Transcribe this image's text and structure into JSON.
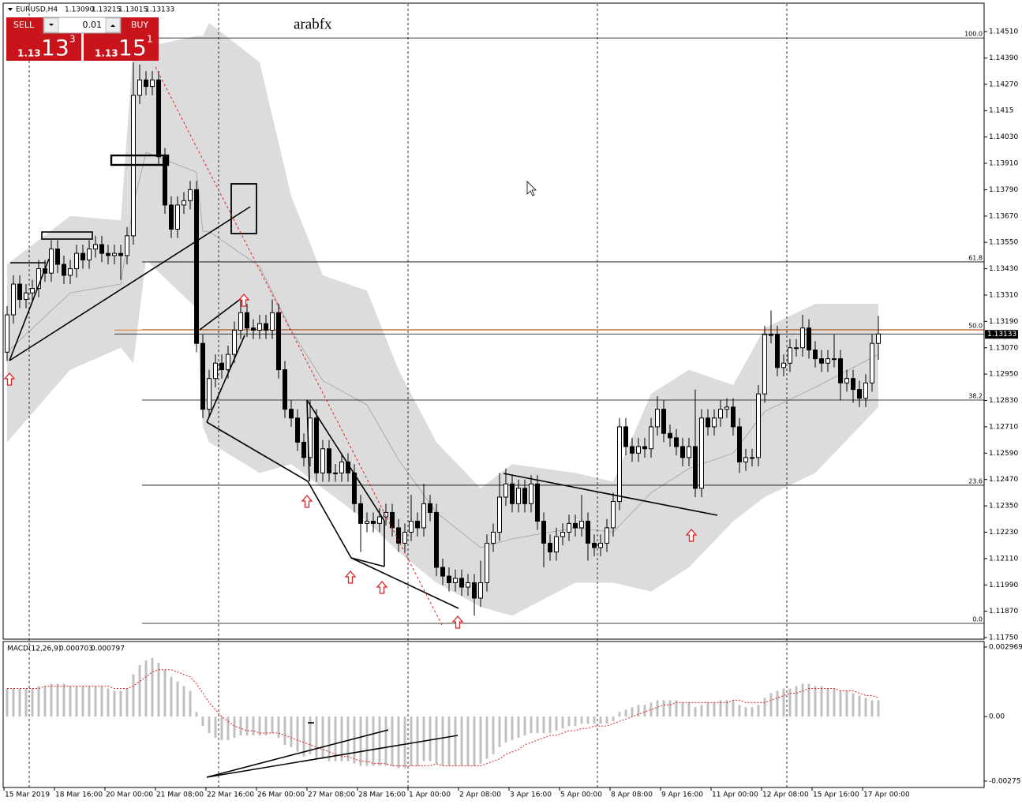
{
  "watermark": "arabfx",
  "trade_panel": {
    "sell": "SELL",
    "buy": "BUY",
    "lot": "0.01",
    "sell_price": [
      "1.13",
      "13",
      "3"
    ],
    "buy_price": [
      "1.13",
      "15",
      "1"
    ]
  },
  "chart_data": [
    {
      "type": "candlestick",
      "title": "EURUSD,H4",
      "ohlc": [
        {
          "value": 1.1309,
          "label": "1.13090"
        },
        {
          "value": 1.13215,
          "label": "1.13215"
        },
        {
          "value": 1.13015,
          "label": "1.13015"
        },
        1.13133
      ],
      "categories": [
        "15 Mar 2019",
        "18 Mar 16:00",
        "20 Mar 00:00",
        "21 Mar 08:00",
        "22 Mar 16:00",
        "26 Mar 00:00",
        "27 Mar 08:00",
        "28 Mar 16:00",
        "1 Apr 00:00",
        "2 Apr 08:00",
        "3 Apr 16:00",
        "5 Apr 00:00",
        "8 Apr 08:00",
        "9 Apr 16:00",
        "11 Apr 00:00",
        "12 Apr 08:00",
        "15 Apr 16:00",
        "17 Apr 00:00"
      ],
      "open": [
        1.1305,
        1.1322,
        1.1336,
        1.1329,
        1.1332,
        1.1334,
        1.1343,
        1.1341,
        1.1352,
        1.1345,
        1.134,
        1.1343,
        1.135,
        1.1347,
        1.1352,
        1.1354,
        1.135,
        1.1349,
        1.135,
        1.1349,
        1.1358,
        1.1422,
        1.1429,
        1.1426,
        1.1429,
        1.1394,
        1.1372,
        1.1361,
        1.1372,
        1.1374,
        1.1379,
        1.1309,
        1.1279,
        1.1293,
        1.13,
        1.1297,
        1.1304,
        1.1315,
        1.1323,
        1.1316,
        1.1315,
        1.1318,
        1.1315,
        1.1323,
        1.1297,
        1.1279,
        1.1275,
        1.1264,
        1.1257,
        1.1275,
        1.125,
        1.1261,
        1.125,
        1.125,
        1.1255,
        1.125,
        1.1236,
        1.1227,
        1.1228,
        1.1227,
        1.123,
        1.1232,
        1.1225,
        1.1218,
        1.1223,
        1.1228,
        1.1225,
        1.1236,
        1.1232,
        1.1207,
        1.1203,
        1.12,
        1.1202,
        1.1198,
        1.12,
        1.1193,
        1.12,
        1.1218,
        1.1223,
        1.1239,
        1.1245,
        1.1236,
        1.1243,
        1.1236,
        1.1245,
        1.1228,
        1.1218,
        1.1214,
        1.1221,
        1.1223,
        1.1227,
        1.1225,
        1.1228,
        1.1218,
        1.1216,
        1.1218,
        1.1225,
        1.1237,
        1.1271,
        1.1262,
        1.1259,
        1.1262,
        1.1261,
        1.1271,
        1.1279,
        1.1268,
        1.1266,
        1.1262,
        1.1257,
        1.1262,
        1.1243,
        1.1275,
        1.1271,
        1.1275,
        1.1279,
        1.128,
        1.1271,
        1.1255,
        1.1257,
        1.1257,
        1.1286,
        1.1313,
        1.1313,
        1.1298,
        1.13,
        1.1307,
        1.1307,
        1.1316,
        1.1306,
        1.1302,
        1.13,
        1.1302,
        1.1302,
        1.1291,
        1.1293,
        1.1288,
        1.1284,
        1.1291,
        1.1309
      ],
      "high": [
        1.1326,
        1.134,
        1.134,
        1.1336,
        1.1338,
        1.1347,
        1.1347,
        1.1356,
        1.1356,
        1.1349,
        1.1347,
        1.1354,
        1.1354,
        1.1356,
        1.1358,
        1.1358,
        1.1354,
        1.1354,
        1.1354,
        1.1362,
        1.1437,
        1.1436,
        1.1433,
        1.1433,
        1.1433,
        1.1398,
        1.1376,
        1.1376,
        1.1378,
        1.1383,
        1.1383,
        1.1313,
        1.1297,
        1.1304,
        1.1304,
        1.1308,
        1.1319,
        1.1329,
        1.1327,
        1.132,
        1.1322,
        1.1322,
        1.1329,
        1.1327,
        1.1301,
        1.1283,
        1.1279,
        1.1268,
        1.1283,
        1.1279,
        1.1265,
        1.1265,
        1.1254,
        1.1259,
        1.1259,
        1.1254,
        1.124,
        1.1232,
        1.1232,
        1.1234,
        1.1236,
        1.1236,
        1.1229,
        1.1227,
        1.124,
        1.1232,
        1.1245,
        1.124,
        1.1236,
        1.1211,
        1.1207,
        1.1206,
        1.1206,
        1.1204,
        1.1204,
        1.121,
        1.1222,
        1.1227,
        1.125,
        1.1252,
        1.1249,
        1.1247,
        1.1247,
        1.1249,
        1.1249,
        1.1232,
        1.1222,
        1.1225,
        1.1227,
        1.1231,
        1.1231,
        1.124,
        1.1232,
        1.1222,
        1.1222,
        1.1229,
        1.1241,
        1.1275,
        1.1275,
        1.1266,
        1.1266,
        1.1266,
        1.1275,
        1.1285,
        1.1283,
        1.1272,
        1.127,
        1.1266,
        1.1266,
        1.1288,
        1.1279,
        1.1279,
        1.1279,
        1.1283,
        1.1284,
        1.1284,
        1.1275,
        1.1261,
        1.1261,
        1.129,
        1.1317,
        1.1324,
        1.1317,
        1.1304,
        1.1311,
        1.1311,
        1.1322,
        1.132,
        1.131,
        1.1306,
        1.1306,
        1.1313,
        1.1306,
        1.1297,
        1.1297,
        1.1292,
        1.1295,
        1.1313,
        1.13215
      ],
      "low": [
        1.1301,
        1.1318,
        1.1325,
        1.1325,
        1.1328,
        1.133,
        1.1337,
        1.1337,
        1.1341,
        1.1336,
        1.1336,
        1.1339,
        1.1343,
        1.1343,
        1.1348,
        1.1346,
        1.1345,
        1.1345,
        1.1338,
        1.1345,
        1.1354,
        1.1418,
        1.1422,
        1.1422,
        1.139,
        1.1368,
        1.1357,
        1.1357,
        1.1368,
        1.137,
        1.1305,
        1.1275,
        1.1275,
        1.1289,
        1.1293,
        1.1293,
        1.13,
        1.1311,
        1.1312,
        1.1311,
        1.1311,
        1.1311,
        1.1311,
        1.1293,
        1.1275,
        1.1271,
        1.126,
        1.1253,
        1.1253,
        1.1246,
        1.1246,
        1.1246,
        1.1246,
        1.1246,
        1.1246,
        1.1232,
        1.1214,
        1.1223,
        1.1223,
        1.1223,
        1.1226,
        1.1221,
        1.1214,
        1.1214,
        1.1219,
        1.1221,
        1.1221,
        1.1228,
        1.1203,
        1.1199,
        1.1196,
        1.1196,
        1.1194,
        1.1194,
        1.1185,
        1.1189,
        1.1196,
        1.1214,
        1.1219,
        1.1235,
        1.1232,
        1.1232,
        1.1232,
        1.1232,
        1.1224,
        1.1207,
        1.121,
        1.121,
        1.1217,
        1.1219,
        1.1221,
        1.1221,
        1.121,
        1.1212,
        1.1212,
        1.1214,
        1.1221,
        1.1233,
        1.1258,
        1.1255,
        1.1255,
        1.1257,
        1.1257,
        1.1267,
        1.1264,
        1.1262,
        1.1258,
        1.1253,
        1.1253,
        1.1239,
        1.1239,
        1.1267,
        1.1267,
        1.1271,
        1.1275,
        1.1267,
        1.125,
        1.1251,
        1.1253,
        1.1253,
        1.1282,
        1.1309,
        1.1294,
        1.1294,
        1.1296,
        1.1303,
        1.1303,
        1.1302,
        1.1298,
        1.1296,
        1.1296,
        1.1298,
        1.1283,
        1.1287,
        1.1282,
        1.128,
        1.128,
        1.1287,
        1.13015
      ],
      "close": [
        1.1322,
        1.1336,
        1.1329,
        1.1332,
        1.1334,
        1.1343,
        1.1341,
        1.1352,
        1.1345,
        1.134,
        1.1343,
        1.135,
        1.1347,
        1.1352,
        1.1354,
        1.135,
        1.1349,
        1.135,
        1.1349,
        1.1358,
        1.1422,
        1.1429,
        1.1426,
        1.1429,
        1.1394,
        1.1372,
        1.1361,
        1.1372,
        1.1374,
        1.1379,
        1.1309,
        1.1279,
        1.1293,
        1.13,
        1.1297,
        1.1304,
        1.1315,
        1.1323,
        1.1316,
        1.1315,
        1.1318,
        1.1315,
        1.1323,
        1.1297,
        1.1279,
        1.1275,
        1.1264,
        1.1257,
        1.1275,
        1.125,
        1.1261,
        1.125,
        1.125,
        1.1255,
        1.125,
        1.1236,
        1.1227,
        1.1228,
        1.1227,
        1.123,
        1.1232,
        1.1225,
        1.1218,
        1.1223,
        1.1228,
        1.1225,
        1.1236,
        1.1232,
        1.1207,
        1.1203,
        1.12,
        1.1202,
        1.1198,
        1.12,
        1.1193,
        1.12,
        1.1218,
        1.1223,
        1.1239,
        1.1245,
        1.1236,
        1.1243,
        1.1236,
        1.1245,
        1.1228,
        1.1218,
        1.1214,
        1.1221,
        1.1223,
        1.1227,
        1.1225,
        1.1228,
        1.1218,
        1.1216,
        1.1218,
        1.1225,
        1.1237,
        1.1271,
        1.1262,
        1.1259,
        1.1262,
        1.1261,
        1.1271,
        1.1279,
        1.1268,
        1.1266,
        1.1262,
        1.1257,
        1.1262,
        1.1243,
        1.1275,
        1.1271,
        1.1275,
        1.1279,
        1.128,
        1.1271,
        1.1255,
        1.1257,
        1.1257,
        1.1286,
        1.1313,
        1.1313,
        1.1298,
        1.13,
        1.1307,
        1.1307,
        1.1316,
        1.1306,
        1.1302,
        1.13,
        1.1302,
        1.1302,
        1.1291,
        1.1293,
        1.1288,
        1.1284,
        1.1291,
        1.1309,
        1.13133
      ],
      "band": {
        "x": [
          0,
          10,
          18,
          20,
          22,
          30,
          31,
          32,
          40,
          45,
          50,
          57,
          62,
          68,
          75,
          80,
          90,
          96,
          102,
          108,
          115,
          120,
          128,
          138
        ],
        "upper": [
          1.1345,
          1.1367,
          1.1365,
          1.1444,
          1.1444,
          1.1449,
          1.1449,
          1.1455,
          1.1437,
          1.1376,
          1.134,
          1.1333,
          1.1297,
          1.1264,
          1.1243,
          1.1254,
          1.125,
          1.1246,
          1.1286,
          1.1297,
          1.129,
          1.1316,
          1.1327,
          1.1327
        ],
        "lower": [
          1.1264,
          1.1297,
          1.1307,
          1.13,
          1.1347,
          1.1325,
          1.1271,
          1.1264,
          1.125,
          1.1254,
          1.1243,
          1.1228,
          1.1214,
          1.12,
          1.1189,
          1.1185,
          1.12,
          1.12,
          1.1196,
          1.1207,
          1.1228,
          1.1239,
          1.125,
          1.128
        ],
        "middle": [
          1.1305,
          1.1332,
          1.1336,
          1.1372,
          1.1396,
          1.1387,
          1.136,
          1.136,
          1.1344,
          1.1315,
          1.1292,
          1.1281,
          1.1256,
          1.1232,
          1.1216,
          1.122,
          1.1225,
          1.1223,
          1.1241,
          1.1252,
          1.1259,
          1.1278,
          1.1289,
          1.1304
        ],
        "color": "#dcdcdc",
        "line_color": "#a0a0a0"
      },
      "fib_levels": [
        {
          "level": {
            "value": 100,
            "label": "100.0"
          },
          "price": 1.14481
        },
        {
          "level": 61.8,
          "price": 1.13461
        },
        {
          "level": {
            "value": 50,
            "label": "50.0"
          },
          "price": 1.13152
        },
        {
          "level": 38.2,
          "price": 1.12832
        },
        {
          "level": 23.6,
          "price": 1.12444
        },
        {
          "level": {
            "value": 0,
            "label": "0.0"
          },
          "price": 1.11815
        }
      ],
      "bid": 1.13133,
      "ask": 1.13151,
      "ask_color": "#e07020",
      "ylim": [
        1.11743,
        1.14636
      ],
      "yticks": [
        {
          "value": 1.1451,
          "label": "1.14510"
        },
        {
          "value": 1.1439,
          "label": "1.14390"
        },
        {
          "value": 1.1427,
          "label": "1.14270"
        },
        1.1415,
        {
          "value": 1.1403,
          "label": "1.14030"
        },
        {
          "value": 1.1391,
          "label": "1.13910"
        },
        {
          "value": 1.1379,
          "label": "1.13790"
        },
        {
          "value": 1.1367,
          "label": "1.13670"
        },
        {
          "value": 1.1355,
          "label": "1.13550"
        },
        {
          "value": 1.1343,
          "label": "1.13430"
        },
        {
          "value": 1.1331,
          "label": "1.13310"
        },
        {
          "value": 1.1319,
          "label": "1.13190"
        },
        {
          "value": 1.1307,
          "label": "1.13070"
        },
        {
          "value": 1.1295,
          "label": "1.12950"
        },
        {
          "value": 1.1283,
          "label": "1.12830"
        },
        {
          "value": 1.1271,
          "label": "1.12710"
        },
        {
          "value": 1.1259,
          "label": "1.12590"
        },
        {
          "value": 1.1247,
          "label": "1.12470"
        },
        {
          "value": 1.1235,
          "label": "1.12350"
        },
        {
          "value": 1.1223,
          "label": "1.12230"
        },
        {
          "value": 1.1211,
          "label": "1.12110"
        },
        {
          "value": 1.1199,
          "label": "1.11990"
        },
        {
          "value": 1.1187,
          "label": "1.11870"
        },
        {
          "value": 1.1175,
          "label": "1.11750"
        }
      ]
    },
    {
      "type": "macd",
      "title": "MACD(12,26,9)",
      "hist_color": "#c0c0c0",
      "signal_color": "#e02020",
      "histogram": [
        0.0012,
        0.0012,
        0.0012,
        0.0012,
        0.0012,
        0.0013,
        0.0013,
        0.0014,
        0.0014,
        0.0014,
        0.0013,
        0.0013,
        0.0013,
        0.0013,
        0.0013,
        0.0013,
        0.0012,
        0.0011,
        0.0011,
        0.0012,
        0.0018,
        0.0022,
        0.0024,
        0.0025,
        0.0023,
        0.002,
        0.0017,
        0.0015,
        0.0013,
        0.0011,
        0.0002,
        -0.0004,
        -0.0007,
        -0.0009,
        -0.001,
        -0.001,
        -0.0009,
        -0.0008,
        -0.0008,
        -0.0008,
        -0.0008,
        -0.0008,
        -0.0007,
        -0.0009,
        -0.0012,
        -0.0013,
        -0.0015,
        -0.0017,
        -0.0016,
        -0.0018,
        -0.0018,
        -0.0019,
        -0.0019,
        -0.0019,
        -0.0019,
        -0.002,
        -0.0021,
        -0.0021,
        -0.0021,
        -0.0021,
        -0.0021,
        -0.0021,
        -0.0022,
        -0.0022,
        -0.0021,
        -0.0021,
        -0.0019,
        -0.0019,
        -0.002,
        -0.0021,
        -0.0021,
        -0.0021,
        -0.0021,
        -0.0021,
        -0.0021,
        -0.002,
        -0.0018,
        -0.0016,
        -0.0013,
        -0.0011,
        -0.001,
        -0.0009,
        -0.0008,
        -0.0007,
        -0.0007,
        -0.0007,
        -0.0007,
        -0.0006,
        -0.0005,
        -0.0004,
        -0.0004,
        -0.0003,
        -0.0003,
        -0.0003,
        -0.0003,
        -0.0003,
        -0.0002,
        0.0002,
        0.0003,
        0.0004,
        0.0005,
        0.0005,
        0.0006,
        0.0007,
        0.0007,
        0.0007,
        0.0007,
        0.0006,
        0.0006,
        0.0004,
        0.0005,
        0.0006,
        0.0006,
        0.0007,
        0.0007,
        0.0007,
        0.0005,
        0.0004,
        0.0004,
        0.0005,
        0.0008,
        0.001,
        0.0011,
        0.0012,
        0.0012,
        0.0013,
        0.0014,
        0.0014,
        0.0013,
        0.0013,
        0.0012,
        0.0012,
        0.0011,
        0.0011,
        0.001,
        0.0009,
        0.0008,
        0.0007,
        0.000703
      ],
      "signal": [
        0.0012,
        0.0012,
        0.0012,
        0.0012,
        0.0012,
        0.0012,
        0.0013,
        0.0013,
        0.0013,
        0.0013,
        0.0013,
        0.0013,
        0.0013,
        0.0013,
        0.0013,
        0.0013,
        0.0013,
        0.0012,
        0.0012,
        0.0012,
        0.0013,
        0.0015,
        0.0017,
        0.0019,
        0.002,
        0.002,
        0.002,
        0.0019,
        0.0018,
        0.0017,
        0.0014,
        0.001,
        0.0006,
        0.0003,
        0.0,
        -0.0002,
        -0.0004,
        -0.0005,
        -0.0006,
        -0.0006,
        -0.0007,
        -0.0007,
        -0.0007,
        -0.0007,
        -0.0008,
        -0.0009,
        -0.001,
        -0.0011,
        -0.0012,
        -0.0013,
        -0.0014,
        -0.0015,
        -0.0016,
        -0.0017,
        -0.0017,
        -0.0018,
        -0.0019,
        -0.0019,
        -0.002,
        -0.002,
        -0.002,
        -0.0021,
        -0.0021,
        -0.0021,
        -0.0021,
        -0.0021,
        -0.0021,
        -0.0021,
        -0.002,
        -0.0021,
        -0.0021,
        -0.0021,
        -0.0021,
        -0.0021,
        -0.0021,
        -0.0021,
        -0.002,
        -0.0019,
        -0.0018,
        -0.0016,
        -0.0015,
        -0.0014,
        -0.0012,
        -0.0011,
        -0.001,
        -0.0009,
        -0.0008,
        -0.0008,
        -0.0007,
        -0.0006,
        -0.0006,
        -0.0005,
        -0.0005,
        -0.0004,
        -0.0004,
        -0.0004,
        -0.0003,
        -0.0002,
        -0.0001,
        0.0,
        0.0001,
        0.0002,
        0.0003,
        0.0004,
        0.0005,
        0.0005,
        0.0006,
        0.0006,
        0.0006,
        0.0006,
        0.0006,
        0.0006,
        0.0006,
        0.0006,
        0.0006,
        0.0007,
        0.0007,
        0.0006,
        0.0006,
        0.0006,
        0.0006,
        0.0007,
        0.0008,
        0.0009,
        0.001,
        0.001,
        0.0011,
        0.0012,
        0.0012,
        0.0012,
        0.0012,
        0.0012,
        0.0011,
        0.0011,
        0.0011,
        0.001,
        0.0009,
        0.0009,
        0.000797
      ],
      "ylim": [
        -0.00302,
        0.003136
      ],
      "yticks": [
        0.002969,
        {
          "value": 0,
          "label": "0.00"
        },
        -0.00275
      ]
    }
  ]
}
